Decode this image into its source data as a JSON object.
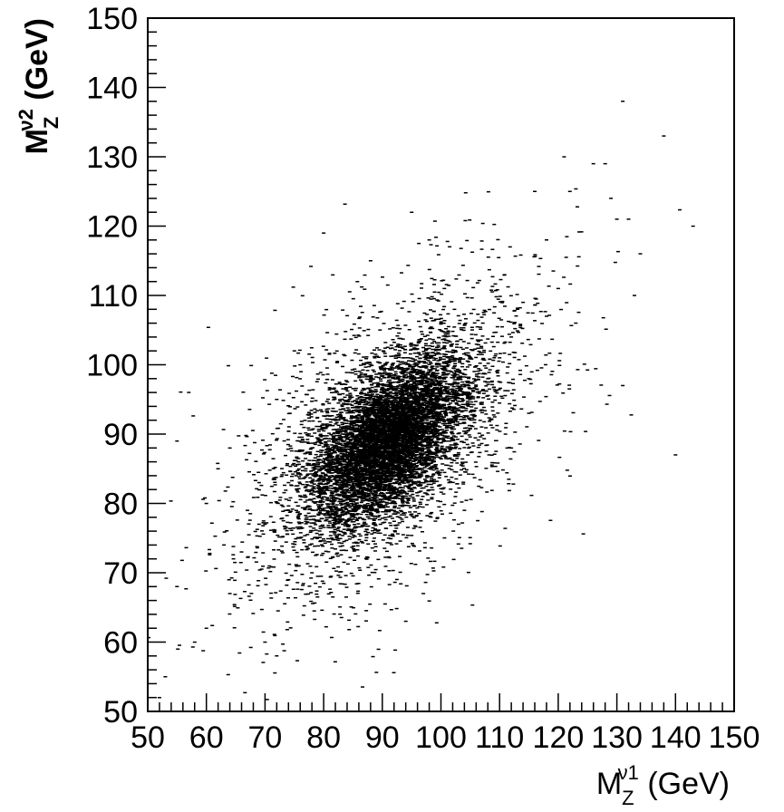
{
  "chart_data": {
    "type": "scatter",
    "title": "",
    "xlabel": {
      "main": "M",
      "sub": "Z",
      "sup": "ν1",
      "unit": " (GeV)"
    },
    "ylabel": {
      "main": "M",
      "sub": "Z",
      "sup": "ν2",
      "unit": " (GeV)"
    },
    "xlim": [
      50,
      150
    ],
    "ylim": [
      50,
      150
    ],
    "xticks": [
      "50",
      "60",
      "70",
      "80",
      "90",
      "100",
      "110",
      "120",
      "130",
      "140",
      "150"
    ],
    "yticks": [
      "50",
      "60",
      "70",
      "80",
      "90",
      "100",
      "110",
      "120",
      "130",
      "140",
      "150"
    ],
    "grid": false,
    "legend": "none",
    "marker_color": "#000000",
    "distribution": {
      "n_points": 9000,
      "center": [
        91,
        89
      ],
      "sigma": [
        6.5,
        6.0
      ],
      "correlation": 0.55
    },
    "points": [
      [
        131,
        138
      ],
      [
        138,
        133
      ],
      [
        140,
        87
      ],
      [
        143,
        120
      ],
      [
        134,
        116
      ],
      [
        132,
        121
      ],
      [
        126,
        129
      ],
      [
        128,
        129
      ],
      [
        131,
        97
      ],
      [
        133,
        110
      ],
      [
        121,
        130
      ],
      [
        122,
        125
      ],
      [
        129,
        124
      ],
      [
        130,
        121
      ],
      [
        118,
        118
      ],
      [
        80,
        119
      ],
      [
        95,
        122
      ],
      [
        98,
        118
      ],
      [
        88,
        115
      ],
      [
        116,
        125
      ],
      [
        57,
        96
      ],
      [
        55,
        89
      ],
      [
        52,
        52
      ],
      [
        53,
        55
      ],
      [
        60,
        62
      ],
      [
        55,
        68
      ],
      [
        58,
        60
      ],
      [
        64,
        67
      ],
      [
        70,
        60
      ],
      [
        72,
        58
      ],
      [
        66,
        73
      ],
      [
        70,
        77
      ],
      [
        74,
        69
      ],
      [
        76,
        75
      ],
      [
        78,
        70
      ],
      [
        112,
        104
      ],
      [
        114,
        109
      ],
      [
        118,
        107
      ],
      [
        120,
        111
      ],
      [
        123,
        106
      ],
      [
        108,
        98
      ],
      [
        110,
        101
      ],
      [
        115,
        98
      ],
      [
        104,
        79
      ],
      [
        103,
        77
      ],
      [
        111,
        90
      ],
      [
        112,
        88
      ],
      [
        115,
        93
      ],
      [
        97,
        67
      ],
      [
        94,
        63
      ],
      [
        62,
        85
      ],
      [
        64,
        88
      ],
      [
        60,
        80
      ],
      [
        72,
        95
      ],
      [
        75,
        102
      ],
      [
        82,
        96
      ],
      [
        76,
        100
      ],
      [
        67,
        79
      ],
      [
        69,
        83
      ],
      [
        63,
        74
      ]
    ]
  }
}
